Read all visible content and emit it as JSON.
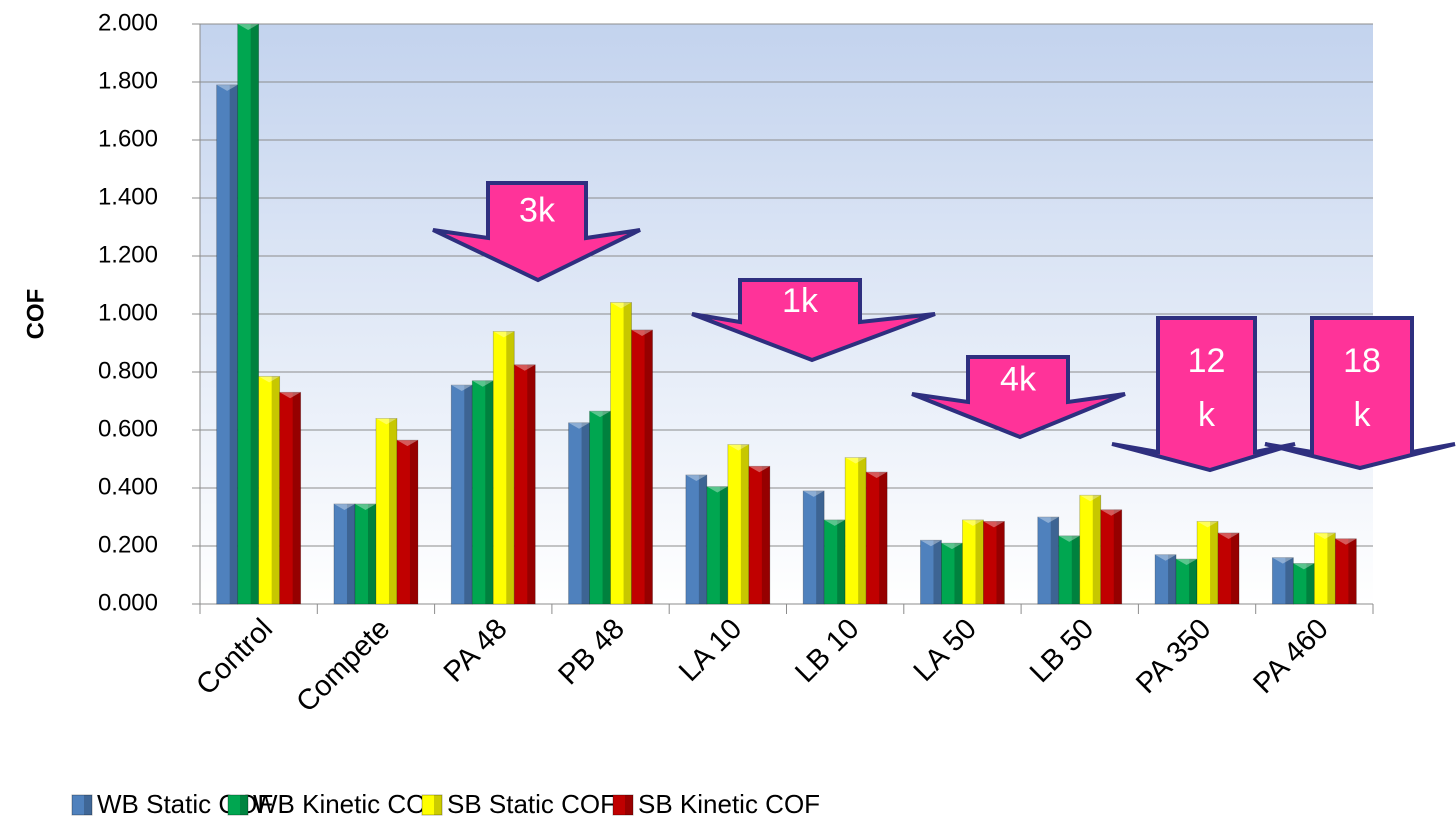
{
  "chart_data": {
    "type": "bar",
    "y_label": "COF",
    "categories": [
      "Control",
      "Compete",
      "PA 48",
      "PB 48",
      "LA 10",
      "LB 10",
      "LA 50",
      "LB 50",
      "PA 350",
      "PA 460"
    ],
    "series": [
      {
        "name": "WB Static COF",
        "color": "#4f81bd",
        "values": [
          1.79,
          0.345,
          0.755,
          0.625,
          0.445,
          0.39,
          0.22,
          0.3,
          0.17,
          0.16
        ]
      },
      {
        "name": "WB Kinetic COF",
        "color": "#00a650",
        "values": [
          2.0,
          0.345,
          0.77,
          0.665,
          0.405,
          0.29,
          0.21,
          0.235,
          0.155,
          0.14
        ]
      },
      {
        "name": "SB Static COF",
        "color": "#ffff00",
        "values": [
          0.785,
          0.64,
          0.94,
          1.04,
          0.55,
          0.505,
          0.29,
          0.375,
          0.285,
          0.245
        ]
      },
      {
        "name": "SB Kinetic COF",
        "color": "#c00000",
        "values": [
          0.73,
          0.565,
          0.825,
          0.945,
          0.475,
          0.455,
          0.285,
          0.325,
          0.245,
          0.225
        ]
      }
    ],
    "ylim": [
      0,
      2
    ],
    "yticks": [
      {
        "value": 0,
        "label": "0.000"
      },
      {
        "value": 0.2,
        "label": "0.200"
      },
      {
        "value": 0.4,
        "label": "0.400"
      },
      {
        "value": 0.6,
        "label": "0.600"
      },
      {
        "value": 0.8,
        "label": "0.800"
      },
      {
        "value": 1.0,
        "label": "1.000"
      },
      {
        "value": 1.2,
        "label": "1.200"
      },
      {
        "value": 1.4,
        "label": "1.400"
      },
      {
        "value": 1.6,
        "label": "1.600"
      },
      {
        "value": 1.8,
        "label": "1.800"
      },
      {
        "value": 2.0,
        "label": "2.000"
      }
    ],
    "grid": true,
    "legend": "bottom",
    "annotations": [
      {
        "lines": [
          "3k"
        ]
      },
      {
        "lines": [
          "1k"
        ]
      },
      {
        "lines": [
          "4k"
        ]
      },
      {
        "lines": [
          "12",
          "k"
        ]
      },
      {
        "lines": [
          "18",
          "k"
        ]
      }
    ]
  }
}
